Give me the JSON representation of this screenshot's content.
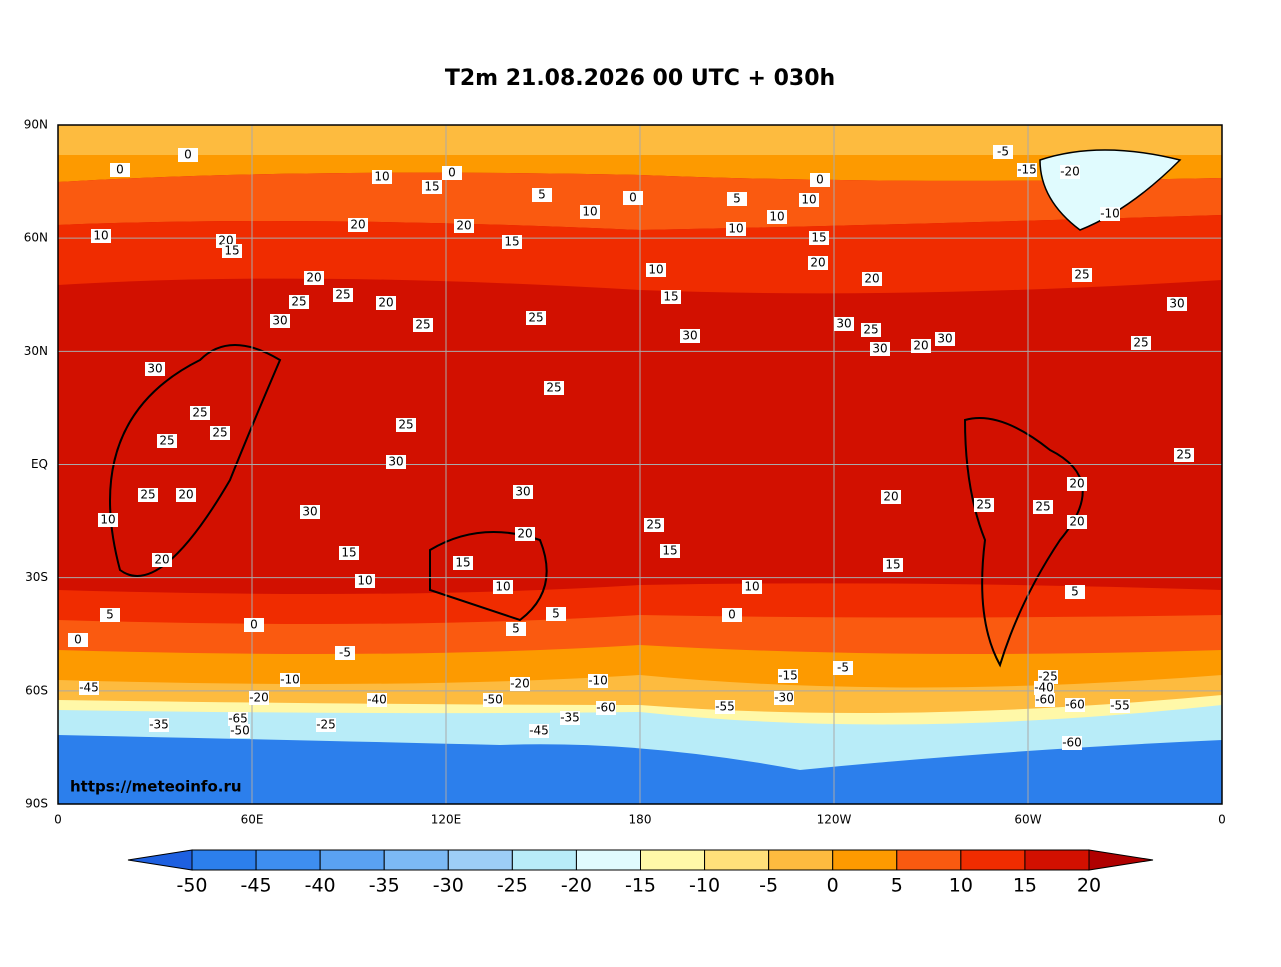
{
  "title": "T2m 21.08.2026 00 UTC + 030h",
  "watermark": "https://meteoinfo.ru",
  "map": {
    "x_labels": [
      "0",
      "60E",
      "120E",
      "180",
      "120W",
      "60W",
      "0"
    ],
    "y_labels": [
      "90N",
      "60N",
      "30N",
      "EQ",
      "30S",
      "60S",
      "90S"
    ],
    "contour_labels": [
      0,
      0,
      10,
      15,
      0,
      5,
      10,
      0,
      5,
      10,
      10,
      0,
      -5,
      -15,
      -20,
      -10,
      10,
      20,
      15,
      20,
      15,
      10,
      15,
      10,
      15,
      20,
      20,
      25,
      30,
      20,
      25,
      20,
      25,
      20,
      30,
      25,
      25,
      30,
      30,
      25,
      30,
      30,
      20,
      25,
      30,
      25,
      25,
      25,
      25,
      25,
      25,
      30,
      25,
      20,
      30,
      30,
      25,
      20,
      25,
      20,
      20,
      25,
      20,
      15,
      15,
      15,
      15,
      20,
      10,
      10,
      10,
      10,
      5,
      5,
      5,
      0,
      0,
      5,
      0,
      -5,
      -10,
      -5,
      -10,
      -15,
      -20,
      -25,
      -20,
      -30,
      -40,
      -40,
      -45,
      -50,
      -60,
      -60,
      -55,
      -60,
      -65,
      -35,
      -25,
      -35,
      -45,
      -50,
      -55,
      -60
    ]
  },
  "colorbar": {
    "ticks": [
      -50,
      -45,
      -40,
      -35,
      -30,
      -25,
      -20,
      -15,
      -10,
      -5,
      0,
      5,
      10,
      15,
      20
    ],
    "colors": [
      "#1e60e0",
      "#2c7fec",
      "#3e8ef0",
      "#5aa2f2",
      "#7cb9f5",
      "#9dcdf6",
      "#b8ecf8",
      "#e0fbfe",
      "#fff8a8",
      "#ffe07a",
      "#fdbb3f",
      "#fd9a00",
      "#fa5a10",
      "#f02c00",
      "#d21000",
      "#b00000"
    ]
  }
}
